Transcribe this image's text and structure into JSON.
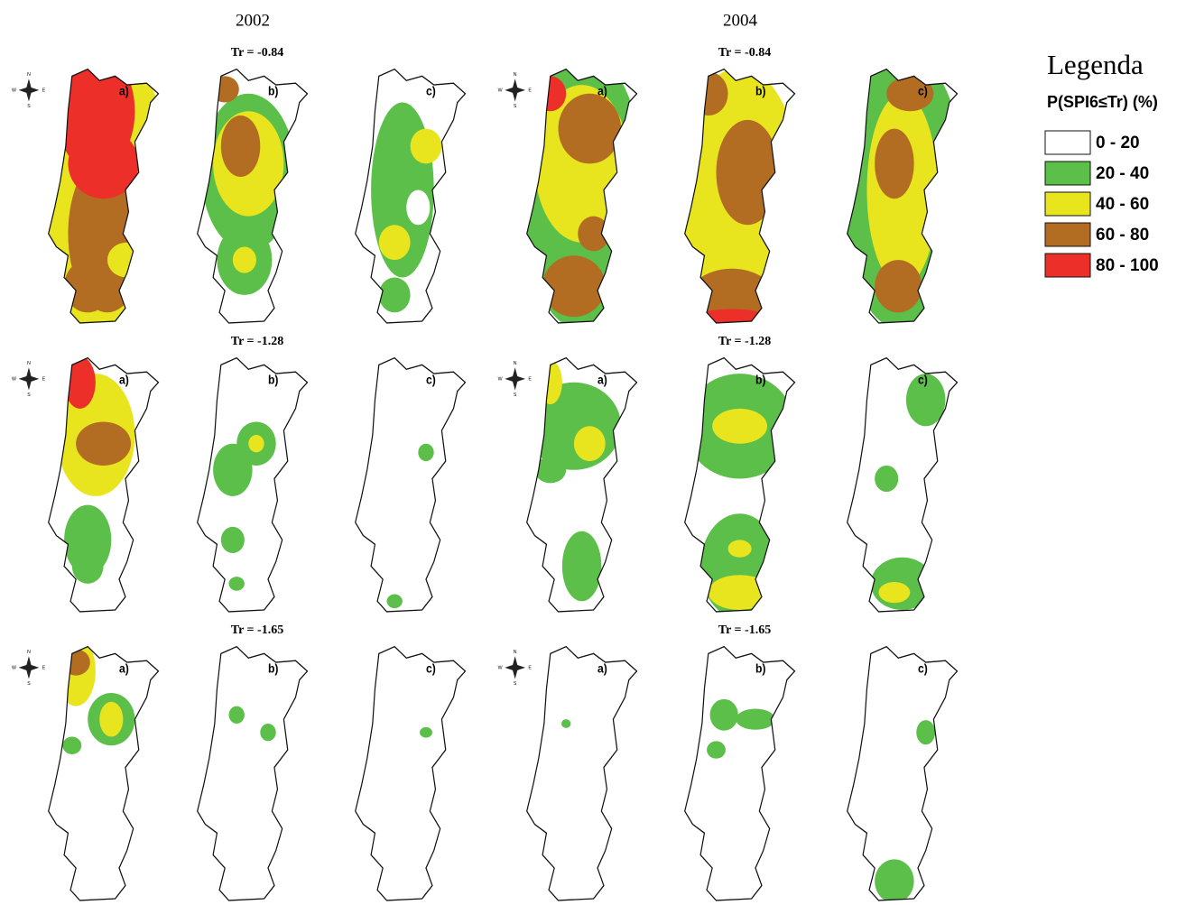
{
  "years": [
    "2002",
    "2004"
  ],
  "thresholds": [
    "Tr = -0.84",
    "Tr = -1.28",
    "Tr = -1.65"
  ],
  "panel_labels": [
    "a)",
    "b)",
    "c)"
  ],
  "compass": {
    "north": "N",
    "south": "S",
    "west": "W",
    "east": "E"
  },
  "legend": {
    "title": "Legenda",
    "subtitle": "P(SPI6≤Tr) (%)",
    "items": [
      {
        "label": "0 - 20",
        "color": "#ffffff"
      },
      {
        "label": "20 - 40",
        "color": "#5cbf4a"
      },
      {
        "label": "40 - 60",
        "color": "#e8e51e"
      },
      {
        "label": "60 - 80",
        "color": "#b26d22"
      },
      {
        "label": "80 - 100",
        "color": "#ec3029"
      }
    ]
  }
}
